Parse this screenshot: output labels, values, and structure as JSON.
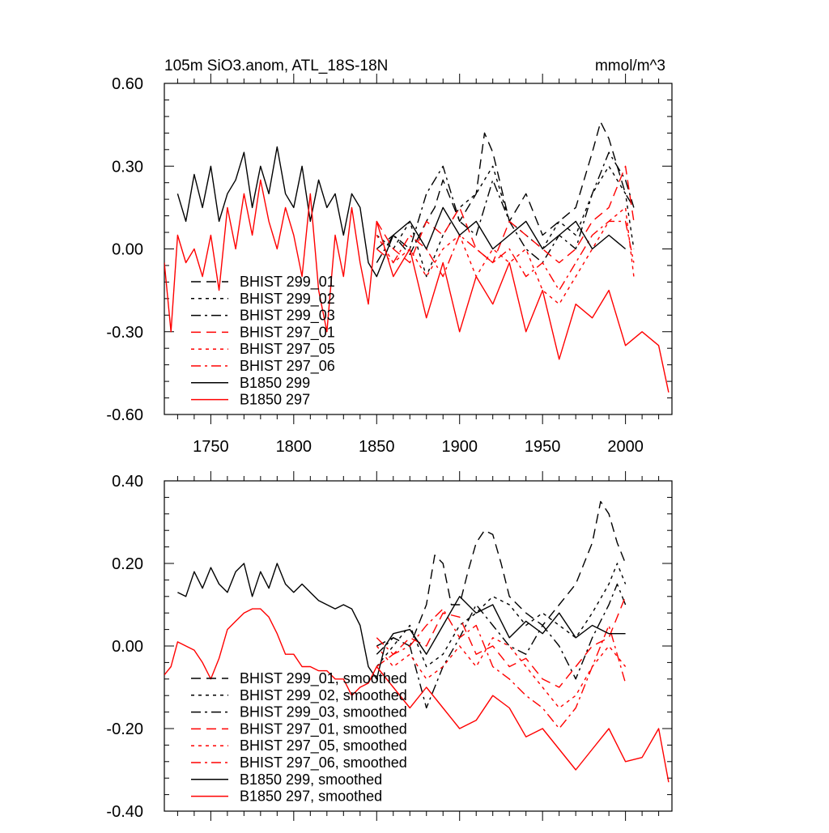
{
  "colors": {
    "black": "#000000",
    "red": "#ff0000",
    "background": "#ffffff"
  },
  "chart_data": [
    {
      "type": "line",
      "id": "top",
      "title": "105m SiO3.anom, ATL_18S-18N",
      "units": "mmol/m^3",
      "xlim": [
        1722,
        2028
      ],
      "ylim": [
        -0.6,
        0.6
      ],
      "yticks": [
        -0.6,
        -0.3,
        0.0,
        0.3,
        0.6
      ],
      "ytick_labels": [
        "-0.60",
        "-0.30",
        "0.00",
        "0.30",
        "0.60"
      ],
      "xticks": [
        1750,
        1800,
        1850,
        1900,
        1950,
        2000
      ],
      "xtick_labels": [
        "1750",
        "1800",
        "1850",
        "1900",
        "1950",
        "2000"
      ],
      "legend": [
        "BHIST 299_01",
        "BHIST 299_02",
        "BHIST 299_03",
        "BHIST 297_01",
        "BHIST 297_05",
        "BHIST 297_06",
        "B1850 299",
        "B1850 297"
      ],
      "series": [
        {
          "name": "BHIST 299_01",
          "color": "black",
          "dash": "long",
          "x": [
            1850,
            1860,
            1870,
            1880,
            1885,
            1890,
            1900,
            1910,
            1915,
            1920,
            1930,
            1940,
            1950,
            1960,
            1970,
            1975,
            1980,
            1985,
            1990,
            1995,
            2000,
            2005
          ],
          "y": [
            0.0,
            0.05,
            -0.02,
            0.1,
            0.15,
            0.25,
            0.1,
            0.2,
            0.42,
            0.35,
            0.1,
            0.2,
            0.05,
            0.1,
            0.15,
            0.25,
            0.35,
            0.46,
            0.4,
            0.3,
            0.2,
            0.15
          ]
        },
        {
          "name": "BHIST 299_02",
          "color": "black",
          "dash": "short",
          "x": [
            1850,
            1860,
            1870,
            1880,
            1890,
            1900,
            1910,
            1920,
            1930,
            1940,
            1950,
            1960,
            1970,
            1980,
            1990,
            2000,
            2005
          ],
          "y": [
            0.05,
            0.0,
            0.1,
            -0.1,
            0.05,
            0.15,
            0.2,
            0.3,
            0.1,
            0.05,
            0.0,
            0.1,
            0.05,
            0.2,
            0.3,
            0.2,
            0.0
          ]
        },
        {
          "name": "BHIST 299_03",
          "color": "black",
          "dash": "dashdot",
          "x": [
            1850,
            1860,
            1870,
            1880,
            1890,
            1900,
            1910,
            1920,
            1930,
            1940,
            1950,
            1960,
            1970,
            1980,
            1990,
            2000,
            2005
          ],
          "y": [
            -0.05,
            0.05,
            0.0,
            0.2,
            0.3,
            0.1,
            0.05,
            0.25,
            0.1,
            0.0,
            -0.05,
            0.05,
            0.0,
            0.2,
            0.35,
            0.25,
            0.15
          ]
        },
        {
          "name": "BHIST 297_01",
          "color": "red",
          "dash": "long",
          "x": [
            1850,
            1860,
            1870,
            1880,
            1890,
            1900,
            1910,
            1920,
            1930,
            1940,
            1950,
            1960,
            1970,
            1980,
            1990,
            2000,
            2005
          ],
          "y": [
            0.1,
            0.0,
            -0.05,
            0.1,
            0.05,
            0.15,
            0.0,
            -0.05,
            0.1,
            0.05,
            0.0,
            -0.05,
            0.0,
            0.1,
            0.15,
            0.3,
            0.1
          ]
        },
        {
          "name": "BHIST 297_05",
          "color": "red",
          "dash": "short",
          "x": [
            1850,
            1860,
            1870,
            1880,
            1890,
            1900,
            1910,
            1920,
            1930,
            1940,
            1950,
            1960,
            1970,
            1980,
            1990,
            2000,
            2005
          ],
          "y": [
            0.05,
            -0.05,
            0.0,
            -0.1,
            0.0,
            0.05,
            -0.1,
            0.0,
            -0.05,
            0.0,
            -0.15,
            -0.2,
            -0.1,
            0.0,
            0.1,
            0.15,
            -0.1
          ]
        },
        {
          "name": "BHIST 297_06",
          "color": "red",
          "dash": "dashdot",
          "x": [
            1850,
            1860,
            1870,
            1880,
            1890,
            1900,
            1910,
            1920,
            1930,
            1940,
            1950,
            1960,
            1970,
            1980,
            1990,
            2000,
            2005
          ],
          "y": [
            0.0,
            -0.05,
            0.05,
            0.0,
            -0.1,
            0.05,
            0.0,
            -0.05,
            0.0,
            -0.1,
            -0.05,
            -0.15,
            -0.05,
            0.05,
            0.1,
            0.1,
            -0.05
          ]
        },
        {
          "name": "B1850 299",
          "color": "black",
          "dash": "solid",
          "x": [
            1730,
            1735,
            1740,
            1745,
            1750,
            1755,
            1760,
            1765,
            1770,
            1775,
            1780,
            1785,
            1790,
            1795,
            1800,
            1805,
            1810,
            1815,
            1820,
            1825,
            1830,
            1835,
            1840,
            1845,
            1850,
            1860,
            1870,
            1880,
            1890,
            1900,
            1910,
            1920,
            1930,
            1940,
            1950,
            1960,
            1970,
            1980,
            1990,
            2000
          ],
          "y": [
            0.2,
            0.1,
            0.27,
            0.15,
            0.3,
            0.1,
            0.2,
            0.25,
            0.35,
            0.15,
            0.3,
            0.2,
            0.37,
            0.2,
            0.15,
            0.3,
            0.1,
            0.25,
            0.15,
            0.2,
            0.05,
            0.2,
            0.15,
            -0.05,
            -0.1,
            0.05,
            0.1,
            0.0,
            0.15,
            0.05,
            0.1,
            0.0,
            0.05,
            0.1,
            0.0,
            0.05,
            0.1,
            0.0,
            0.05,
            0.0
          ]
        },
        {
          "name": "B1850 297",
          "color": "red",
          "dash": "solid",
          "x": [
            1722,
            1726,
            1730,
            1735,
            1740,
            1745,
            1750,
            1755,
            1760,
            1765,
            1770,
            1775,
            1780,
            1785,
            1790,
            1795,
            1800,
            1805,
            1810,
            1815,
            1820,
            1825,
            1830,
            1835,
            1840,
            1845,
            1850,
            1860,
            1870,
            1880,
            1890,
            1900,
            1910,
            1920,
            1930,
            1940,
            1950,
            1960,
            1970,
            1980,
            1990,
            2000,
            2010,
            2020,
            2026
          ],
          "y": [
            -0.05,
            -0.3,
            0.05,
            -0.05,
            0.0,
            -0.1,
            0.05,
            -0.15,
            0.15,
            0.0,
            0.2,
            0.05,
            0.25,
            0.1,
            0.0,
            0.15,
            0.05,
            -0.1,
            0.2,
            -0.15,
            -0.3,
            0.05,
            -0.1,
            0.15,
            -0.05,
            -0.2,
            0.1,
            -0.1,
            0.0,
            -0.25,
            -0.05,
            -0.3,
            -0.1,
            -0.2,
            -0.05,
            -0.3,
            -0.15,
            -0.4,
            -0.2,
            -0.25,
            -0.15,
            -0.35,
            -0.3,
            -0.35,
            -0.52
          ]
        }
      ]
    },
    {
      "type": "line",
      "id": "bottom",
      "ylim": [
        -0.4,
        0.4
      ],
      "xlim": [
        1722,
        2028
      ],
      "yticks": [
        -0.4,
        -0.2,
        0.0,
        0.2,
        0.4
      ],
      "ytick_labels": [
        "-0.40",
        "-0.20",
        "0.00",
        "0.20",
        "0.40"
      ],
      "xticks": [
        1750,
        1800,
        1850,
        1900,
        1950,
        2000
      ],
      "legend": [
        "BHIST 299_01, smoothed",
        "BHIST 299_02, smoothed",
        "BHIST 299_03, smoothed",
        "BHIST 297_01, smoothed",
        "BHIST 297_05, smoothed",
        "BHIST 297_06, smoothed",
        "B1850 299, smoothed",
        "B1850 297, smoothed"
      ],
      "series": [
        {
          "name": "BHIST 299_01, smoothed",
          "color": "black",
          "dash": "long",
          "x": [
            1850,
            1860,
            1870,
            1880,
            1885,
            1890,
            1895,
            1900,
            1905,
            1910,
            1915,
            1920,
            1925,
            1930,
            1940,
            1950,
            1960,
            1970,
            1975,
            1980,
            1985,
            1990,
            1995,
            2000
          ],
          "y": [
            0.0,
            0.02,
            0.0,
            0.1,
            0.22,
            0.2,
            0.1,
            0.1,
            0.18,
            0.25,
            0.28,
            0.27,
            0.2,
            0.12,
            0.08,
            0.05,
            0.1,
            0.15,
            0.2,
            0.25,
            0.35,
            0.32,
            0.25,
            0.2
          ]
        },
        {
          "name": "BHIST 299_02, smoothed",
          "color": "black",
          "dash": "short",
          "x": [
            1850,
            1860,
            1870,
            1880,
            1890,
            1900,
            1910,
            1920,
            1930,
            1940,
            1950,
            1960,
            1970,
            1980,
            1990,
            1995,
            2000
          ],
          "y": [
            -0.05,
            0.0,
            0.05,
            -0.05,
            -0.02,
            0.05,
            0.08,
            0.12,
            0.1,
            0.05,
            0.08,
            0.05,
            0.02,
            0.08,
            0.15,
            0.2,
            0.15
          ]
        },
        {
          "name": "BHIST 299_03, smoothed",
          "color": "black",
          "dash": "dashdot",
          "x": [
            1850,
            1860,
            1870,
            1880,
            1890,
            1900,
            1910,
            1920,
            1930,
            1940,
            1950,
            1960,
            1970,
            1980,
            1990,
            1995,
            2000
          ],
          "y": [
            -0.02,
            0.02,
            0.0,
            -0.15,
            -0.05,
            0.02,
            0.1,
            0.05,
            0.0,
            -0.02,
            0.05,
            0.0,
            -0.08,
            0.02,
            0.1,
            0.15,
            0.1
          ]
        },
        {
          "name": "BHIST 297_01, smoothed",
          "color": "red",
          "dash": "long",
          "x": [
            1850,
            1860,
            1870,
            1880,
            1890,
            1900,
            1910,
            1920,
            1930,
            1940,
            1950,
            1960,
            1970,
            1980,
            1990,
            2000
          ],
          "y": [
            -0.05,
            -0.02,
            0.02,
            0.0,
            0.08,
            0.07,
            -0.02,
            0.0,
            -0.05,
            -0.03,
            -0.08,
            -0.1,
            -0.05,
            0.0,
            0.02,
            0.12
          ]
        },
        {
          "name": "BHIST 297_05, smoothed",
          "color": "red",
          "dash": "short",
          "x": [
            1850,
            1860,
            1870,
            1880,
            1890,
            1900,
            1910,
            1920,
            1930,
            1940,
            1950,
            1960,
            1970,
            1980,
            1990,
            2000
          ],
          "y": [
            0.0,
            -0.05,
            -0.02,
            -0.08,
            -0.05,
            0.0,
            -0.05,
            0.02,
            0.0,
            -0.05,
            -0.1,
            -0.15,
            -0.12,
            -0.05,
            0.0,
            -0.05
          ]
        },
        {
          "name": "BHIST 297_06, smoothed",
          "color": "red",
          "dash": "dashdot",
          "x": [
            1850,
            1860,
            1870,
            1880,
            1890,
            1900,
            1910,
            1920,
            1930,
            1940,
            1950,
            1960,
            1970,
            1980,
            1990,
            2000
          ],
          "y": [
            0.02,
            -0.02,
            0.0,
            0.05,
            0.09,
            0.02,
            0.05,
            -0.05,
            -0.08,
            -0.12,
            -0.15,
            -0.2,
            -0.15,
            -0.05,
            0.05,
            -0.09
          ]
        },
        {
          "name": "B1850 299, smoothed",
          "color": "black",
          "dash": "solid",
          "x": [
            1730,
            1735,
            1740,
            1745,
            1750,
            1755,
            1760,
            1765,
            1770,
            1775,
            1780,
            1785,
            1790,
            1795,
            1800,
            1805,
            1810,
            1815,
            1820,
            1825,
            1830,
            1835,
            1840,
            1845,
            1850,
            1855,
            1860,
            1870,
            1880,
            1890,
            1900,
            1910,
            1920,
            1930,
            1940,
            1950,
            1960,
            1970,
            1980,
            1990,
            2000
          ],
          "y": [
            0.13,
            0.12,
            0.18,
            0.14,
            0.19,
            0.15,
            0.13,
            0.18,
            0.2,
            0.12,
            0.18,
            0.14,
            0.2,
            0.15,
            0.13,
            0.15,
            0.13,
            0.11,
            0.1,
            0.09,
            0.1,
            0.09,
            0.05,
            -0.05,
            -0.08,
            0.0,
            0.03,
            0.04,
            -0.02,
            0.05,
            0.12,
            0.08,
            0.1,
            0.02,
            0.06,
            0.03,
            0.08,
            0.02,
            0.05,
            0.03,
            0.03
          ]
        },
        {
          "name": "B1850 297, smoothed",
          "color": "red",
          "dash": "solid",
          "x": [
            1722,
            1726,
            1730,
            1735,
            1740,
            1745,
            1750,
            1755,
            1760,
            1765,
            1770,
            1775,
            1780,
            1785,
            1790,
            1795,
            1800,
            1805,
            1810,
            1815,
            1820,
            1825,
            1830,
            1835,
            1840,
            1845,
            1850,
            1860,
            1870,
            1880,
            1890,
            1900,
            1910,
            1920,
            1930,
            1940,
            1950,
            1960,
            1970,
            1980,
            1990,
            2000,
            2010,
            2020,
            2026
          ],
          "y": [
            -0.07,
            -0.05,
            0.01,
            0.0,
            -0.01,
            -0.04,
            -0.08,
            -0.03,
            0.04,
            0.06,
            0.08,
            0.09,
            0.09,
            0.07,
            0.03,
            -0.02,
            -0.02,
            -0.05,
            -0.05,
            -0.06,
            -0.06,
            -0.08,
            -0.08,
            -0.12,
            -0.1,
            -0.09,
            -0.05,
            -0.1,
            -0.15,
            -0.1,
            -0.15,
            -0.2,
            -0.18,
            -0.12,
            -0.15,
            -0.22,
            -0.2,
            -0.25,
            -0.3,
            -0.25,
            -0.2,
            -0.28,
            -0.27,
            -0.2,
            -0.33
          ]
        }
      ]
    }
  ]
}
